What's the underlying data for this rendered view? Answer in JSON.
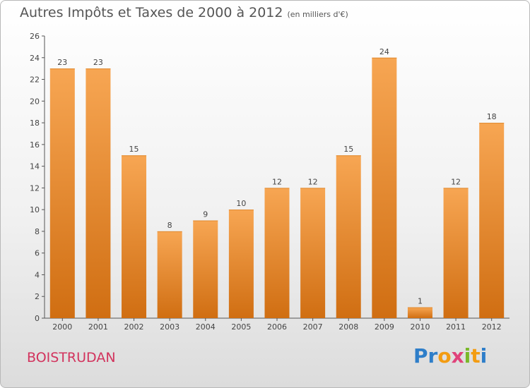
{
  "title": "Autres Impôts et Taxes de 2000 à 2012",
  "title_unit": "(en milliers d'€)",
  "place_name": "BOISTRUDAN",
  "logo": {
    "text": "Proxiti",
    "letters": [
      {
        "ch": "P",
        "color": "#2e7ec9"
      },
      {
        "ch": "r",
        "color": "#2e7ec9"
      },
      {
        "ch": "o",
        "color": "#f39c12"
      },
      {
        "ch": "x",
        "color": "#e0437a"
      },
      {
        "ch": "i",
        "color": "#7ab829"
      },
      {
        "ch": "t",
        "color": "#f39c12"
      },
      {
        "ch": "i",
        "color": "#2e7ec9"
      }
    ]
  },
  "colors": {
    "bar_light": "#f7a653",
    "bar_dark": "#d06e12",
    "axis": "#555555",
    "grid": "#d9d9d9"
  },
  "chart_data": {
    "type": "bar",
    "categories": [
      "2000",
      "2001",
      "2002",
      "2003",
      "2004",
      "2005",
      "2006",
      "2007",
      "2008",
      "2009",
      "2010",
      "2011",
      "2012"
    ],
    "values": [
      23,
      23,
      15,
      8,
      9,
      10,
      12,
      12,
      15,
      24,
      1,
      12,
      18
    ],
    "value_labels": [
      "23",
      "23",
      "15",
      "8",
      "9",
      "10",
      "12",
      "12",
      "15",
      "24",
      "1",
      "12",
      "18"
    ],
    "ylim": [
      0,
      26
    ],
    "yticks": [
      0,
      2,
      4,
      6,
      8,
      10,
      12,
      14,
      16,
      18,
      20,
      22,
      24,
      26
    ],
    "grid": false,
    "legend": "none"
  }
}
